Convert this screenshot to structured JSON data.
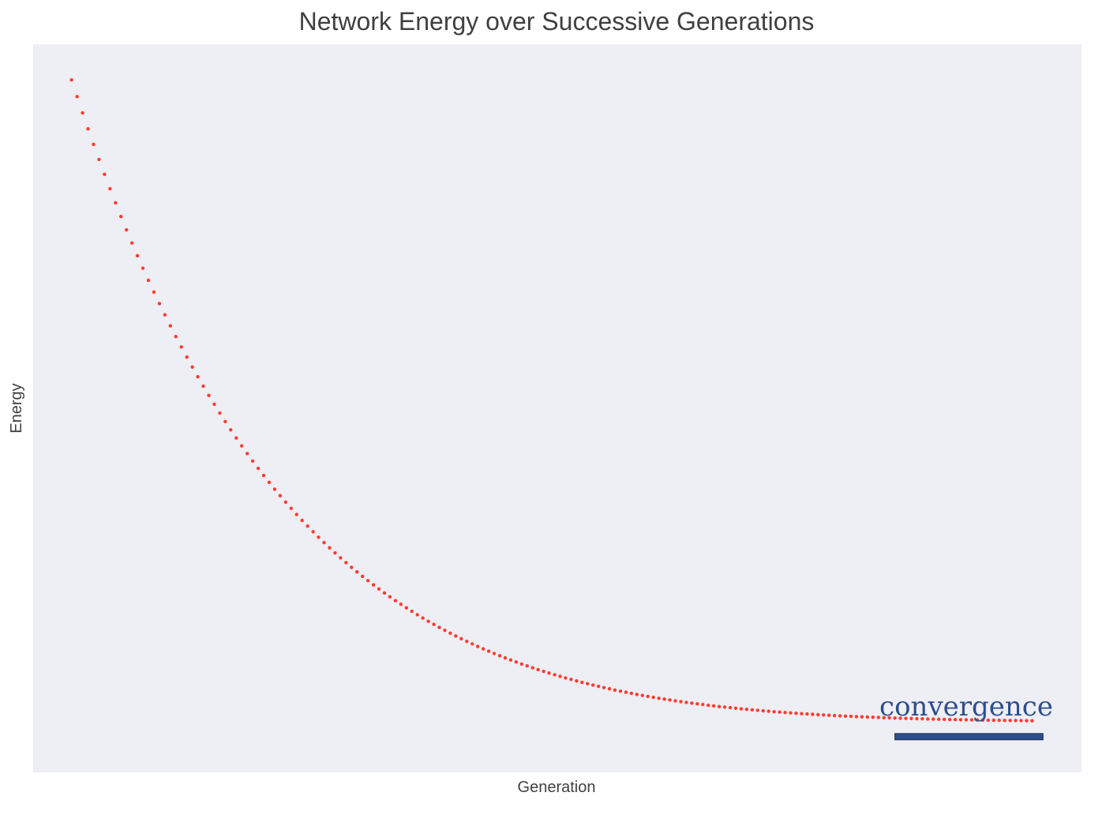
{
  "chart_data": {
    "type": "scatter",
    "title": "Network Energy over Successive Generations",
    "xlabel": "Generation",
    "ylabel": "Energy",
    "xticks_visible": false,
    "yticks_visible": false,
    "grid": false,
    "legend": "none",
    "background_color": "#eeeef5",
    "marker_color": "#ff3b2f",
    "xlim": [
      -7,
      184
    ],
    "ylim": [
      -2,
      100
    ],
    "series": [
      {
        "x": [
          0,
          1,
          2,
          3,
          4,
          5,
          6,
          7,
          8,
          9,
          10,
          11,
          12,
          13,
          14,
          15,
          16,
          17,
          18,
          19,
          20,
          21,
          22,
          23,
          24,
          25,
          26,
          27,
          28,
          29,
          30,
          31,
          32,
          33,
          34,
          35,
          36,
          37,
          38,
          39,
          40,
          41,
          42,
          43,
          44,
          45,
          46,
          47,
          48,
          49,
          50,
          51,
          52,
          53,
          54,
          55,
          56,
          57,
          58,
          59,
          60,
          61,
          62,
          63,
          64,
          65,
          66,
          67,
          68,
          69,
          70,
          71,
          72,
          73,
          74,
          75,
          76,
          77,
          78,
          79,
          80,
          81,
          82,
          83,
          84,
          85,
          86,
          87,
          88,
          89,
          90,
          91,
          92,
          93,
          94,
          95,
          96,
          97,
          98,
          99,
          100,
          101,
          102,
          103,
          104,
          105,
          106,
          107,
          108,
          109,
          110,
          111,
          112,
          113,
          114,
          115,
          116,
          117,
          118,
          119,
          120,
          121,
          122,
          123,
          124,
          125,
          126,
          127,
          128,
          129,
          130,
          131,
          132,
          133,
          134,
          135,
          136,
          137,
          138,
          139,
          140,
          141,
          142,
          143,
          144,
          145,
          146,
          147,
          148,
          149,
          150,
          151,
          152,
          153,
          154,
          155,
          156,
          157,
          158,
          159,
          160,
          161,
          162,
          163,
          164,
          165,
          166,
          167,
          168,
          169,
          170,
          171,
          172,
          173,
          174,
          175
        ],
        "y": [
          95.0,
          92.66,
          90.38,
          88.15,
          85.97,
          83.85,
          81.78,
          79.76,
          77.79,
          75.86,
          73.99,
          72.16,
          70.37,
          68.63,
          66.93,
          65.28,
          63.66,
          62.09,
          60.55,
          59.05,
          57.59,
          56.17,
          54.78,
          53.42,
          52.1,
          50.81,
          49.56,
          48.33,
          47.14,
          45.98,
          44.84,
          43.74,
          42.66,
          41.61,
          40.59,
          39.59,
          38.62,
          37.67,
          36.75,
          35.85,
          34.98,
          34.12,
          33.29,
          32.49,
          31.7,
          30.93,
          30.18,
          29.45,
          28.74,
          28.05,
          27.38,
          26.72,
          26.08,
          25.46,
          24.86,
          24.27,
          23.69,
          23.13,
          22.59,
          22.06,
          21.55,
          21.04,
          20.56,
          20.08,
          19.62,
          19.17,
          18.73,
          18.31,
          17.9,
          17.49,
          17.1,
          16.72,
          16.35,
          15.99,
          15.64,
          15.3,
          14.97,
          14.65,
          14.34,
          14.04,
          13.74,
          13.46,
          13.18,
          12.91,
          12.65,
          12.39,
          12.15,
          11.91,
          11.67,
          11.45,
          11.23,
          11.02,
          10.81,
          10.61,
          10.42,
          10.23,
          10.05,
          9.87,
          9.7,
          9.53,
          9.37,
          9.22,
          9.07,
          8.92,
          8.78,
          8.64,
          8.51,
          8.38,
          8.26,
          8.14,
          8.02,
          7.91,
          7.8,
          7.7,
          7.6,
          7.5,
          7.4,
          7.31,
          7.22,
          7.14,
          7.06,
          6.98,
          6.9,
          6.83,
          6.76,
          6.69,
          6.62,
          6.56,
          6.5,
          6.44,
          6.38,
          6.33,
          6.28,
          6.22,
          6.18,
          6.13,
          6.08,
          6.04,
          6.0,
          5.96,
          5.92,
          5.88,
          5.85,
          5.81,
          5.78,
          5.75,
          5.72,
          5.69,
          5.66,
          5.64,
          5.61,
          5.59,
          5.56,
          5.54,
          5.52,
          5.5,
          5.48,
          5.46,
          5.44,
          5.42,
          5.41,
          5.39,
          5.38,
          5.36,
          5.35,
          5.34,
          5.32,
          5.31,
          5.3,
          5.29,
          5.28,
          5.27,
          5.26,
          5.25,
          5.24,
          5.23
        ]
      }
    ],
    "annotation": {
      "text": "convergence",
      "color": "#2d4e8c",
      "bar_fill": "#2d4e8c",
      "bar_x_range": [
        150,
        177
      ],
      "bar_y": 3.0
    }
  }
}
